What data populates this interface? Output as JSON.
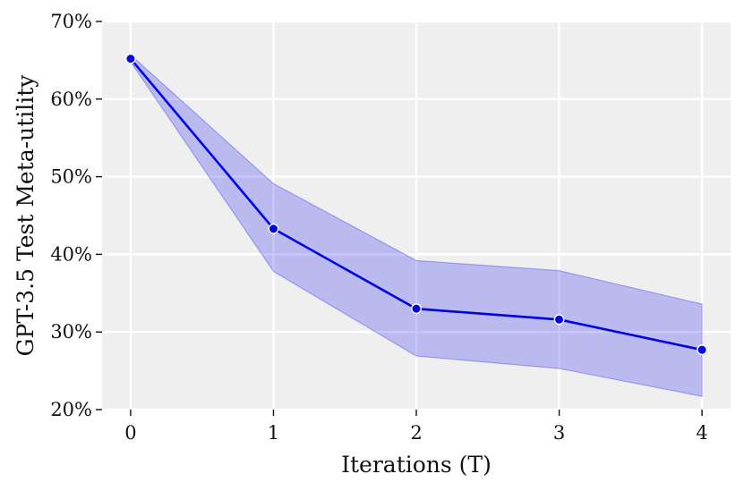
{
  "chart_data": {
    "type": "line",
    "title": "",
    "xlabel": "Iterations (T)",
    "ylabel": "GPT-3.5 Test Meta-utility",
    "x": [
      0,
      1,
      2,
      3,
      4
    ],
    "xticks": [
      0,
      1,
      2,
      3,
      4
    ],
    "yticks": [
      20,
      30,
      40,
      50,
      60,
      70
    ],
    "ytick_format": "%",
    "xlim": [
      -0.2,
      4.2
    ],
    "ylim": [
      20,
      70
    ],
    "grid": true,
    "legend": "none",
    "series": [
      {
        "values": [
          65.2,
          43.3,
          33.0,
          31.6,
          27.7
        ],
        "band_lower": [
          64.8,
          37.8,
          26.9,
          25.3,
          21.7
        ],
        "band_upper": [
          65.7,
          49.1,
          39.2,
          37.9,
          33.6
        ],
        "color": "#0000ee",
        "band_color": "#0000ee"
      }
    ],
    "colors": {
      "plot_background": "#efefef",
      "grid": "#ffffff",
      "line": "#0000ee",
      "band": "#0000ee"
    }
  }
}
